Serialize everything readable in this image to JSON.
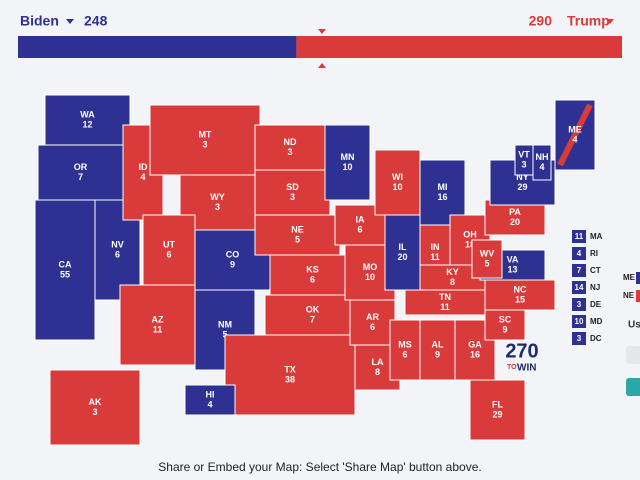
{
  "tally": {
    "candidates": [
      {
        "name": "Biden",
        "votes": 248,
        "color": "#2e3192"
      },
      {
        "name": "Trump",
        "votes": 290,
        "color": "#d93a3a"
      }
    ]
  },
  "states": [
    {
      "abbr": "WA",
      "ev": 12,
      "party": "Biden"
    },
    {
      "abbr": "OR",
      "ev": 7,
      "party": "Biden"
    },
    {
      "abbr": "CA",
      "ev": 55,
      "party": "Biden"
    },
    {
      "abbr": "NV",
      "ev": 6,
      "party": "Biden"
    },
    {
      "abbr": "ID",
      "ev": 4,
      "party": "Trump"
    },
    {
      "abbr": "MT",
      "ev": 3,
      "party": "Trump"
    },
    {
      "abbr": "WY",
      "ev": 3,
      "party": "Trump"
    },
    {
      "abbr": "UT",
      "ev": 6,
      "party": "Trump"
    },
    {
      "abbr": "CO",
      "ev": 9,
      "party": "Biden"
    },
    {
      "abbr": "AZ",
      "ev": 11,
      "party": "Trump"
    },
    {
      "abbr": "NM",
      "ev": 5,
      "party": "Biden"
    },
    {
      "abbr": "ND",
      "ev": 3,
      "party": "Trump"
    },
    {
      "abbr": "SD",
      "ev": 3,
      "party": "Trump"
    },
    {
      "abbr": "NE",
      "ev": 5,
      "party": "Trump"
    },
    {
      "abbr": "KS",
      "ev": 6,
      "party": "Trump"
    },
    {
      "abbr": "OK",
      "ev": 7,
      "party": "Trump"
    },
    {
      "abbr": "TX",
      "ev": 38,
      "party": "Trump"
    },
    {
      "abbr": "MN",
      "ev": 10,
      "party": "Biden"
    },
    {
      "abbr": "IA",
      "ev": 6,
      "party": "Trump"
    },
    {
      "abbr": "MO",
      "ev": 10,
      "party": "Trump"
    },
    {
      "abbr": "AR",
      "ev": 6,
      "party": "Trump"
    },
    {
      "abbr": "LA",
      "ev": 8,
      "party": "Trump"
    },
    {
      "abbr": "WI",
      "ev": 10,
      "party": "Trump"
    },
    {
      "abbr": "IL",
      "ev": 20,
      "party": "Biden"
    },
    {
      "abbr": "MI",
      "ev": 16,
      "party": "Biden"
    },
    {
      "abbr": "IN",
      "ev": 11,
      "party": "Trump"
    },
    {
      "abbr": "OH",
      "ev": 18,
      "party": "Trump"
    },
    {
      "abbr": "KY",
      "ev": 8,
      "party": "Trump"
    },
    {
      "abbr": "TN",
      "ev": 11,
      "party": "Trump"
    },
    {
      "abbr": "MS",
      "ev": 6,
      "party": "Trump"
    },
    {
      "abbr": "AL",
      "ev": 9,
      "party": "Trump"
    },
    {
      "abbr": "GA",
      "ev": 16,
      "party": "Trump"
    },
    {
      "abbr": "FL",
      "ev": 29,
      "party": "Trump"
    },
    {
      "abbr": "SC",
      "ev": 9,
      "party": "Trump"
    },
    {
      "abbr": "NC",
      "ev": 15,
      "party": "Trump"
    },
    {
      "abbr": "VA",
      "ev": 13,
      "party": "Biden"
    },
    {
      "abbr": "WV",
      "ev": 5,
      "party": "Trump"
    },
    {
      "abbr": "PA",
      "ev": 20,
      "party": "Trump"
    },
    {
      "abbr": "NY",
      "ev": 29,
      "party": "Biden"
    },
    {
      "abbr": "VT",
      "ev": 3,
      "party": "Biden"
    },
    {
      "abbr": "NH",
      "ev": 4,
      "party": "Biden"
    },
    {
      "abbr": "ME",
      "ev": 4,
      "party": "Biden",
      "stripe": "Trump"
    },
    {
      "abbr": "AK",
      "ev": 3,
      "party": "Trump"
    },
    {
      "abbr": "HI",
      "ev": 4,
      "party": "Biden"
    }
  ],
  "small_states": [
    {
      "abbr": "MA",
      "ev": 11,
      "party": "Biden"
    },
    {
      "abbr": "RI",
      "ev": 4,
      "party": "Biden"
    },
    {
      "abbr": "CT",
      "ev": 7,
      "party": "Biden"
    },
    {
      "abbr": "NJ",
      "ev": 14,
      "party": "Biden"
    },
    {
      "abbr": "DE",
      "ev": 3,
      "party": "Biden"
    },
    {
      "abbr": "MD",
      "ev": 10,
      "party": "Biden"
    },
    {
      "abbr": "DC",
      "ev": 3,
      "party": "Biden"
    }
  ],
  "side_panel": {
    "rows": [
      {
        "label": "ME",
        "party": "Biden"
      },
      {
        "label": "NE",
        "party": "Trump"
      }
    ],
    "cut_text": "Us"
  },
  "logo": [
    "270",
    "TO",
    "WIN"
  ],
  "footer": "Share or Embed your Map: Select 'Share Map' button above."
}
